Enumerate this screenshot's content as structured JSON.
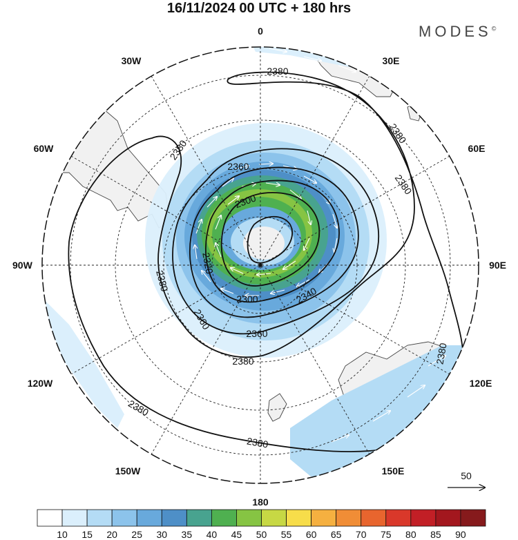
{
  "title": "16/11/2024  00 UTC  + 180 hrs",
  "brand": "MODES",
  "brand_mark": "©",
  "longitude_labels": {
    "top": "0",
    "bottom": "180",
    "left": "90W",
    "right": "90E",
    "nw1": "30W",
    "nw2": "60W",
    "ne1": "30E",
    "ne2": "60E",
    "sw1": "120W",
    "sw2": "150W",
    "se1": "120E",
    "se2": "150E"
  },
  "contour_labels": [
    "2380",
    "2360",
    "2340",
    "2320",
    "2300"
  ],
  "reference_vector": {
    "value": "50"
  },
  "colorbar": {
    "ticks": [
      "10",
      "15",
      "20",
      "25",
      "30",
      "35",
      "40",
      "45",
      "50",
      "55",
      "60",
      "65",
      "70",
      "75",
      "80",
      "85",
      "90"
    ],
    "colors": [
      "#ffffff",
      "#dbeffc",
      "#b4dcf5",
      "#8cc3eb",
      "#68a9dc",
      "#4e8fc7",
      "#48a38f",
      "#4fb050",
      "#86c443",
      "#c7d844",
      "#f7dd4a",
      "#f5b040",
      "#f08d36",
      "#e8652e",
      "#d9382a",
      "#c21f26",
      "#a3171e",
      "#861a1c"
    ]
  }
}
